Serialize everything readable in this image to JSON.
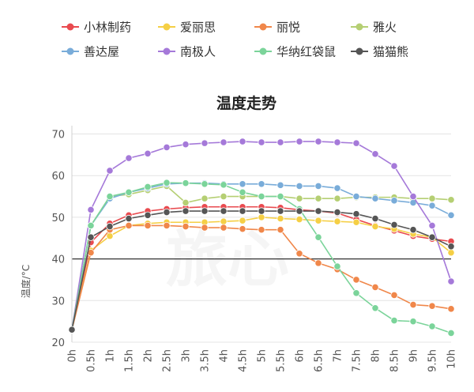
{
  "chart_data": {
    "type": "line",
    "title": "温度走势",
    "xlabel": "",
    "ylabel": "温度/°C",
    "categories": [
      "0h",
      "0.5h",
      "1h",
      "1.5h",
      "2h",
      "2.5h",
      "3h",
      "3.5h",
      "4h",
      "4.5h",
      "5h",
      "5.5h",
      "6h",
      "6.5h",
      "7h",
      "7.5h",
      "8h",
      "8.5h",
      "9h",
      "9.5h",
      "10h"
    ],
    "ylim": [
      20,
      72
    ],
    "yticks": [
      20,
      30,
      40,
      50,
      60,
      70
    ],
    "grid": true,
    "legend": "top",
    "watermark_text": "旅心",
    "series": [
      {
        "name": "小林制药",
        "color": "#e94a4f",
        "values": [
          23,
          44,
          48.5,
          50.5,
          51.5,
          52,
          52.3,
          52.5,
          52.5,
          52.5,
          52.5,
          52.3,
          51.8,
          51.5,
          51,
          49.5,
          48,
          46.8,
          45.5,
          44.8,
          44.2
        ]
      },
      {
        "name": "爱丽思",
        "color": "#f5cf45",
        "values": [
          23,
          42,
          45.5,
          48,
          48.5,
          48.8,
          48.8,
          48.8,
          49,
          49.2,
          50,
          49.7,
          49.5,
          49.2,
          49,
          48.8,
          47.8,
          47.2,
          46,
          45.2,
          41.5
        ]
      },
      {
        "name": "丽悦",
        "color": "#f0874a",
        "values": [
          23,
          41.5,
          47,
          48,
          48,
          48,
          47.8,
          47.5,
          47.5,
          47.2,
          47,
          47,
          41.3,
          39,
          37.5,
          35,
          33.2,
          31.3,
          29,
          28.7,
          28
        ]
      },
      {
        "name": "雅火",
        "color": "#b5cf73",
        "values": [
          23,
          48,
          55,
          55.5,
          56.5,
          57.5,
          53.5,
          54.5,
          55,
          55,
          55,
          55,
          54.5,
          54.5,
          54.5,
          54.8,
          54.8,
          54.8,
          54.5,
          54.5,
          54.2
        ]
      },
      {
        "name": "善达屋",
        "color": "#79acd9",
        "values": [
          23,
          48,
          54.5,
          56,
          57,
          58,
          58.2,
          58.2,
          58,
          58,
          58,
          57.7,
          57.5,
          57.5,
          57,
          55,
          54.5,
          54,
          53.5,
          52.8,
          50.5
        ]
      },
      {
        "name": "南极人",
        "color": "#a579d9",
        "values": [
          23,
          51.8,
          61.2,
          64.2,
          65.3,
          66.8,
          67.5,
          67.8,
          68,
          68.2,
          68,
          68,
          68.2,
          68.2,
          68,
          67.8,
          65.2,
          62.3,
          55,
          48,
          34.6
        ]
      },
      {
        "name": "华纳红袋鼠",
        "color": "#7bd49a",
        "values": [
          23,
          48,
          55,
          56,
          57.3,
          58.3,
          58.2,
          58,
          57.8,
          56,
          55,
          55,
          52,
          45.2,
          38.2,
          31.8,
          28.2,
          25.2,
          25,
          23.8,
          22.2
        ]
      },
      {
        "name": "猫猫熊",
        "color": "#555555",
        "values": [
          23,
          45.2,
          47.8,
          49.7,
          50.5,
          51.2,
          51.5,
          51.5,
          51.5,
          51.5,
          51.5,
          51.5,
          51.5,
          51.5,
          51.2,
          50.8,
          49.7,
          48.2,
          47,
          45.2,
          43
        ]
      }
    ]
  }
}
